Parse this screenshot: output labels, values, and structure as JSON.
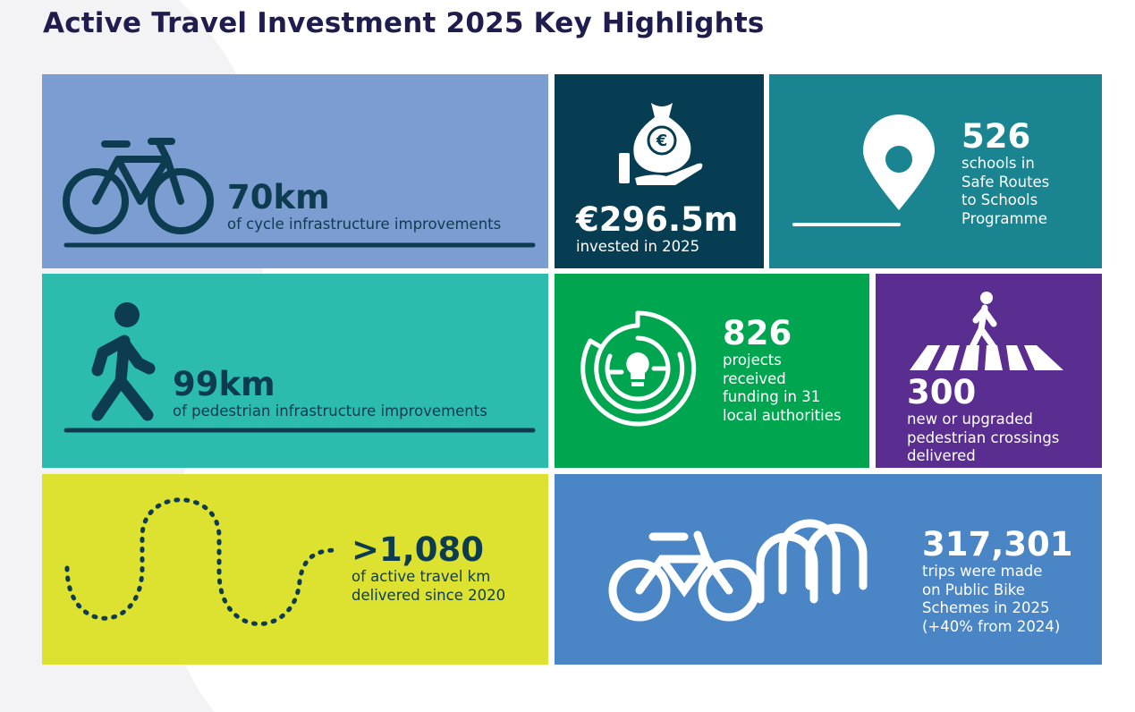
{
  "title": "Active Travel Investment 2025 Key Highlights",
  "tiles": [
    {
      "stat": "70km",
      "lines": [
        "of cycle infrastructure improvements"
      ]
    },
    {
      "stat": "€296.5m",
      "lines": [
        "invested in 2025"
      ]
    },
    {
      "stat": "526",
      "lines": [
        "schools in",
        "Safe Routes",
        "to Schools",
        "Programme"
      ]
    },
    {
      "stat": "99km",
      "lines": [
        "of pedestrian infrastructure improvements"
      ]
    },
    {
      "stat": "826",
      "lines": [
        "projects",
        "received",
        "funding in 31",
        "local authorities"
      ]
    },
    {
      "stat": "300",
      "lines": [
        "new or upgraded",
        "pedestrian crossings",
        "delivered"
      ]
    },
    {
      "stat": ">1,080",
      "lines": [
        "of active travel km",
        "delivered since 2020"
      ]
    },
    {
      "stat": "317,301",
      "lines": [
        "trips were made",
        "on Public Bike",
        "Schemes in 2025",
        "(+40% from 2024)"
      ]
    }
  ]
}
